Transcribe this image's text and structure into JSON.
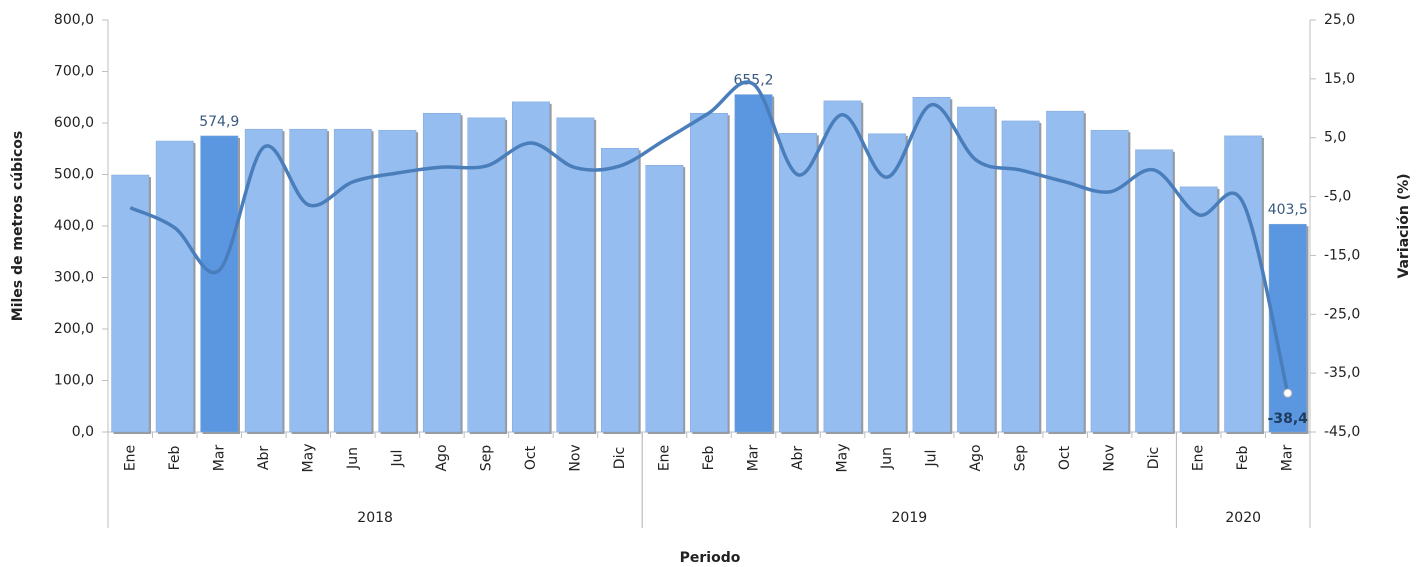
{
  "chart_data": {
    "type": "bar_line",
    "x_axis_title": "Periodo",
    "y_axis_title": "Miles de metros cúbicos",
    "y2_axis_title": "Variación (%)",
    "category_groups": [
      {
        "name": "2018",
        "categories": [
          "Ene",
          "Feb",
          "Mar",
          "Abr",
          "May",
          "Jun",
          "Jul",
          "Ago",
          "Sep",
          "Oct",
          "Nov",
          "Dic"
        ]
      },
      {
        "name": "2019",
        "categories": [
          "Ene",
          "Feb",
          "Mar",
          "Abr",
          "May",
          "Jun",
          "Jul",
          "Ago",
          "Sep",
          "Oct",
          "Nov",
          "Dic"
        ]
      },
      {
        "name": "2020",
        "categories": [
          "Ene",
          "Feb",
          "Mar"
        ]
      }
    ],
    "series": [
      {
        "type": "bar",
        "axis": "y",
        "colors": [
          "#95bdf0",
          "#95bdf0",
          "#5b97e0",
          "#95bdf0",
          "#95bdf0",
          "#95bdf0",
          "#95bdf0",
          "#95bdf0",
          "#95bdf0",
          "#95bdf0",
          "#95bdf0",
          "#95bdf0",
          "#95bdf0",
          "#95bdf0",
          "#5b97e0",
          "#95bdf0",
          "#95bdf0",
          "#95bdf0",
          "#95bdf0",
          "#95bdf0",
          "#95bdf0",
          "#95bdf0",
          "#95bdf0",
          "#95bdf0",
          "#95bdf0",
          "#95bdf0",
          "#5b97e0"
        ],
        "values": [
          499,
          565,
          574.9,
          588,
          588,
          588,
          586,
          619,
          610,
          641,
          610,
          551,
          518,
          619,
          655.2,
          580,
          643,
          579,
          650,
          631,
          604,
          623,
          586,
          548,
          476,
          575,
          403.5
        ],
        "value_labels": [
          null,
          null,
          "574,9",
          null,
          null,
          null,
          null,
          null,
          null,
          null,
          null,
          null,
          null,
          null,
          "655,2",
          null,
          null,
          null,
          null,
          null,
          null,
          null,
          null,
          null,
          null,
          null,
          "403,5"
        ]
      },
      {
        "type": "line",
        "axis": "y2",
        "color": "#4a7ebb",
        "values": [
          -6.9,
          -10.3,
          -17.5,
          3.4,
          -6.4,
          -2.5,
          -1.0,
          0.0,
          0.2,
          4.1,
          -0.1,
          0.2,
          4.6,
          9.2,
          14.1,
          -1.3,
          8.9,
          -1.7,
          10.6,
          1.2,
          -0.5,
          -2.5,
          -4.2,
          -0.5,
          -8.1,
          -6.1,
          -38.4
        ],
        "value_labels": [
          null,
          null,
          null,
          null,
          null,
          null,
          null,
          null,
          null,
          null,
          null,
          null,
          null,
          null,
          null,
          null,
          null,
          null,
          null,
          null,
          null,
          null,
          null,
          null,
          null,
          null,
          "-38,4"
        ]
      }
    ],
    "ylim": [
      0,
      800
    ],
    "yticks": [
      {
        "value": 0,
        "label": "0,0"
      },
      {
        "value": 100,
        "label": "100,0"
      },
      {
        "value": 200,
        "label": "200,0"
      },
      {
        "value": 300,
        "label": "300,0"
      },
      {
        "value": 400,
        "label": "400,0"
      },
      {
        "value": 500,
        "label": "500,0"
      },
      {
        "value": 600,
        "label": "600,0"
      },
      {
        "value": 700,
        "label": "700,0"
      },
      {
        "value": 800,
        "label": "800,0"
      }
    ],
    "y2lim": [
      -45,
      25
    ],
    "y2ticks": [
      {
        "value": -45,
        "label": "-45,0"
      },
      {
        "value": -35,
        "label": "-35,0"
      },
      {
        "value": -25,
        "label": "-25,0"
      },
      {
        "value": -15,
        "label": "-15,0"
      },
      {
        "value": -5,
        "label": "-5,0"
      },
      {
        "value": 5,
        "label": "5,0"
      },
      {
        "value": 15,
        "label": "15,0"
      },
      {
        "value": 25,
        "label": "25,0"
      }
    ]
  }
}
